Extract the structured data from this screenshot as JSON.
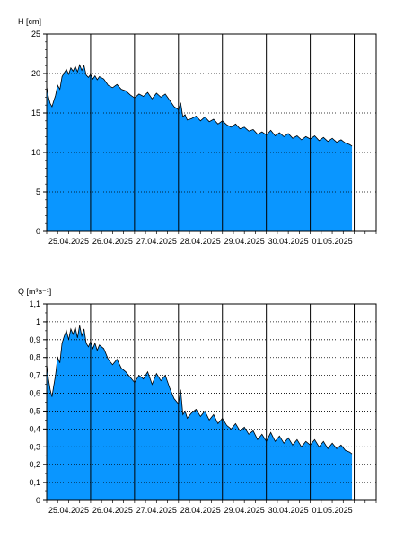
{
  "chart_data": [
    {
      "type": "area",
      "ylabel": "H [cm]",
      "ylim": [
        0,
        25
      ],
      "yticks": [
        0,
        5,
        10,
        15,
        20,
        25
      ],
      "ytick_labels": [
        "0",
        "5",
        "10",
        "15",
        "20",
        "25"
      ],
      "xlim": [
        0,
        7.5
      ],
      "xtick_labels": [
        "25.04.2025",
        "26.04.2025",
        "27.04.2025",
        "28.04.2025",
        "29.04.2025",
        "30.04.2025",
        "01.05.2025"
      ],
      "xtick_positions": [
        0.5,
        1.5,
        2.5,
        3.5,
        4.5,
        5.5,
        6.5
      ],
      "day_boundaries": [
        1,
        2,
        3,
        4,
        5,
        6,
        7
      ],
      "grid": true,
      "fill_color": "#0a96ff",
      "series": [
        {
          "x": [
            0.0,
            0.04,
            0.08,
            0.12,
            0.16,
            0.2,
            0.25,
            0.3,
            0.35,
            0.4,
            0.45,
            0.5,
            0.55,
            0.6,
            0.65,
            0.7,
            0.75,
            0.8,
            0.85,
            0.9,
            0.95,
            1.0,
            1.05,
            1.1,
            1.15,
            1.2,
            1.3,
            1.4,
            1.5,
            1.6,
            1.7,
            1.8,
            1.9,
            2.0,
            2.1,
            2.2,
            2.3,
            2.4,
            2.5,
            2.6,
            2.7,
            2.8,
            2.9,
            3.0,
            3.05,
            3.1,
            3.15,
            3.2,
            3.3,
            3.4,
            3.5,
            3.6,
            3.7,
            3.8,
            3.9,
            4.0,
            4.1,
            4.2,
            4.3,
            4.4,
            4.5,
            4.6,
            4.7,
            4.8,
            4.9,
            5.0,
            5.1,
            5.2,
            5.3,
            5.4,
            5.5,
            5.6,
            5.7,
            5.8,
            5.9,
            6.0,
            6.1,
            6.2,
            6.3,
            6.4,
            6.5,
            6.6,
            6.7,
            6.8,
            6.9,
            6.95
          ],
          "y": [
            18.3,
            17.0,
            16.2,
            15.8,
            16.5,
            17.2,
            18.5,
            18.0,
            19.6,
            20.1,
            20.5,
            19.9,
            20.7,
            20.3,
            20.9,
            20.2,
            21.1,
            20.4,
            21.0,
            19.8,
            19.5,
            19.9,
            19.3,
            19.7,
            19.2,
            19.6,
            19.3,
            18.5,
            18.2,
            18.6,
            18.0,
            17.8,
            17.3,
            16.9,
            17.4,
            17.1,
            17.6,
            16.8,
            17.5,
            17.0,
            17.4,
            16.6,
            15.8,
            15.4,
            16.3,
            14.5,
            14.8,
            14.1,
            14.3,
            14.6,
            14.0,
            14.5,
            13.9,
            14.2,
            13.6,
            14.0,
            13.5,
            13.2,
            13.6,
            13.0,
            13.2,
            12.7,
            12.9,
            12.3,
            12.6,
            12.2,
            12.8,
            12.1,
            12.5,
            12.0,
            12.4,
            11.8,
            12.1,
            11.6,
            12.0,
            11.7,
            12.1,
            11.5,
            11.9,
            11.4,
            11.8,
            11.3,
            11.6,
            11.2,
            11.0,
            10.8
          ]
        }
      ]
    },
    {
      "type": "area",
      "ylabel": "Q [m³s⁻¹]",
      "ylim": [
        0,
        1.1
      ],
      "yticks": [
        0,
        0.1,
        0.2,
        0.3,
        0.4,
        0.5,
        0.6,
        0.7,
        0.8,
        0.9,
        1.0,
        1.1
      ],
      "ytick_labels": [
        "0",
        "0,1",
        "0,2",
        "0,3",
        "0,4",
        "0,5",
        "0,6",
        "0,7",
        "0,8",
        "0,9",
        "1",
        "1,1"
      ],
      "xlim": [
        0,
        7.5
      ],
      "xtick_labels": [
        "25.04.2025",
        "26.04.2025",
        "27.04.2025",
        "28.04.2025",
        "29.04.2025",
        "30.04.2025",
        "01.05.2025"
      ],
      "xtick_positions": [
        0.5,
        1.5,
        2.5,
        3.5,
        4.5,
        5.5,
        6.5
      ],
      "day_boundaries": [
        1,
        2,
        3,
        4,
        5,
        6,
        7
      ],
      "grid": true,
      "fill_color": "#0a96ff",
      "series": [
        {
          "x": [
            0.0,
            0.04,
            0.08,
            0.12,
            0.16,
            0.2,
            0.25,
            0.3,
            0.35,
            0.4,
            0.45,
            0.5,
            0.55,
            0.6,
            0.65,
            0.7,
            0.75,
            0.8,
            0.85,
            0.9,
            0.95,
            1.0,
            1.05,
            1.1,
            1.15,
            1.2,
            1.3,
            1.4,
            1.5,
            1.6,
            1.7,
            1.8,
            1.9,
            2.0,
            2.1,
            2.2,
            2.3,
            2.4,
            2.5,
            2.6,
            2.7,
            2.8,
            2.9,
            3.0,
            3.05,
            3.1,
            3.15,
            3.2,
            3.3,
            3.4,
            3.5,
            3.6,
            3.7,
            3.8,
            3.9,
            4.0,
            4.1,
            4.2,
            4.3,
            4.4,
            4.5,
            4.6,
            4.7,
            4.8,
            4.9,
            5.0,
            5.1,
            5.2,
            5.3,
            5.4,
            5.5,
            5.6,
            5.7,
            5.8,
            5.9,
            6.0,
            6.1,
            6.2,
            6.3,
            6.4,
            6.5,
            6.6,
            6.7,
            6.8,
            6.9,
            6.95
          ],
          "y": [
            0.76,
            0.68,
            0.62,
            0.58,
            0.64,
            0.7,
            0.8,
            0.77,
            0.88,
            0.92,
            0.95,
            0.9,
            0.96,
            0.93,
            0.97,
            0.91,
            0.98,
            0.92,
            0.96,
            0.88,
            0.86,
            0.89,
            0.85,
            0.88,
            0.84,
            0.87,
            0.85,
            0.79,
            0.76,
            0.79,
            0.74,
            0.72,
            0.69,
            0.66,
            0.7,
            0.68,
            0.72,
            0.65,
            0.71,
            0.67,
            0.7,
            0.63,
            0.57,
            0.54,
            0.62,
            0.48,
            0.5,
            0.46,
            0.49,
            0.51,
            0.47,
            0.5,
            0.45,
            0.48,
            0.43,
            0.46,
            0.42,
            0.4,
            0.43,
            0.39,
            0.41,
            0.37,
            0.39,
            0.34,
            0.37,
            0.33,
            0.38,
            0.33,
            0.36,
            0.32,
            0.35,
            0.31,
            0.34,
            0.3,
            0.33,
            0.31,
            0.34,
            0.3,
            0.33,
            0.29,
            0.32,
            0.29,
            0.31,
            0.28,
            0.27,
            0.26
          ]
        }
      ]
    }
  ]
}
